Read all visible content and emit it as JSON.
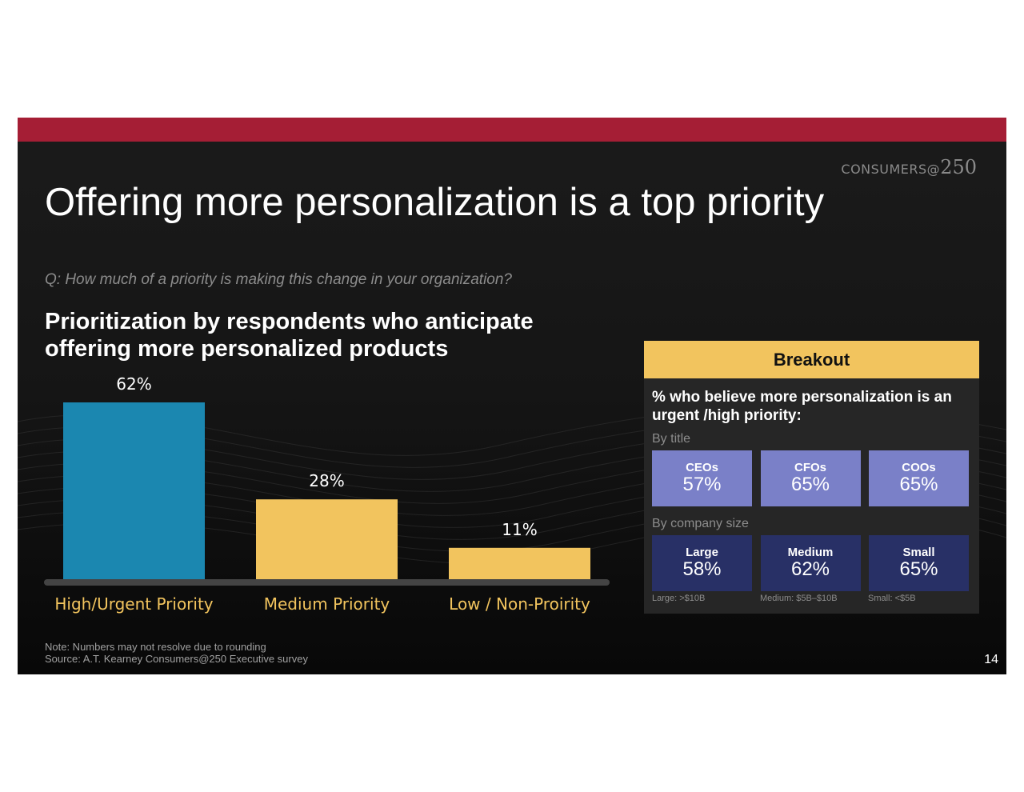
{
  "logo": {
    "text": "CONSUMERS@",
    "number": "250"
  },
  "title": "Offering more personalization is a top priority",
  "question": "Q: How much of a priority is making this change in your organization?",
  "chart_data": {
    "type": "bar",
    "title": "Prioritization by respondents who anticipate offering more personalized products",
    "categories": [
      "High/Urgent Priority",
      "Medium Priority",
      "Low / Non-Proirity"
    ],
    "values": [
      62,
      28,
      11
    ],
    "data_labels": [
      "62%",
      "28%",
      "11%"
    ],
    "colors": [
      "#1b87b0",
      "#f2c45e",
      "#f2c45e"
    ],
    "ylim": [
      0,
      62
    ],
    "category_label_color": "#f2c45e",
    "baseline_color": "#444444"
  },
  "breakout": {
    "header": "Breakout",
    "question": "% who believe more personalization is an urgent /high priority:",
    "by_title": {
      "label": "By title",
      "tiles": [
        {
          "label": "CEOs",
          "value": "57%"
        },
        {
          "label": "CFOs",
          "value": "65%"
        },
        {
          "label": "COOs",
          "value": "65%"
        }
      ]
    },
    "by_size": {
      "label": "By company size",
      "tiles": [
        {
          "label": "Large",
          "value": "58%"
        },
        {
          "label": "Medium",
          "value": "62%"
        },
        {
          "label": "Small",
          "value": "65%"
        }
      ],
      "notes": [
        "Large: >$10B",
        "Medium: $5B–$10B",
        "Small: <$5B"
      ]
    }
  },
  "footer": {
    "note": "Note: Numbers may not resolve due to rounding",
    "source": "Source: A.T. Kearney Consumers@250 Executive survey",
    "page": "14"
  },
  "colors": {
    "top_bar": "#a51e35",
    "accent_yellow": "#f2c45e",
    "accent_blue": "#1b87b0",
    "tile_light": "#7a80c8",
    "tile_dark": "#283066"
  }
}
